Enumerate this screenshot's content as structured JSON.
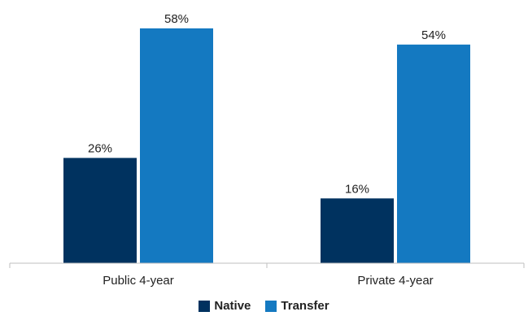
{
  "chart_data": {
    "type": "bar",
    "categories": [
      "Public 4-year",
      "Private 4-year"
    ],
    "series": [
      {
        "name": "Native",
        "values": [
          26,
          16
        ],
        "labels": [
          "26%",
          "16%"
        ],
        "color": "#00325f"
      },
      {
        "name": "Transfer",
        "values": [
          58,
          54
        ],
        "labels": [
          "58%",
          "54%"
        ],
        "color": "#1479c1"
      }
    ],
    "ylim": [
      0,
      63
    ],
    "grid": false,
    "legend": "bottom-center",
    "axis_color": "#bfbfbf"
  }
}
